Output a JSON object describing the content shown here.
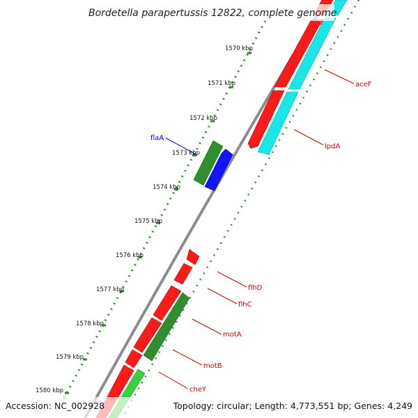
{
  "title": "Bordetella parapertussis 12822, complete genome",
  "footer": {
    "accession": "Accession: NC_002928",
    "summary": "Topology: circular; Length: 4,773,551 bp; Genes: 4,249"
  },
  "colors": {
    "backbone": "#8c8c8c",
    "ticks": "#2e8b2e",
    "red_gene": "#ff1a1a",
    "cyan_gene": "#19e6e6",
    "green_gene": "#2f8f2f",
    "light_green_gene": "#39d139",
    "blue_gene": "#1414ff",
    "red_label": "#cc0000",
    "blue_label": "#0000cc"
  },
  "ticks": [
    "1570 kbp",
    "1571 kbp",
    "1572 kbp",
    "1573 kbp",
    "1574 kbp",
    "1575 kbp",
    "1576 kbp",
    "1577 kbp",
    "1578 kbp",
    "1579 kbp",
    "1580 kbp"
  ],
  "genes": [
    {
      "name": "aceF",
      "color": "red"
    },
    {
      "name": "lpdA",
      "color": "red"
    },
    {
      "name": "flaA",
      "color": "blue"
    },
    {
      "name": "flhD",
      "color": "red"
    },
    {
      "name": "flhC",
      "color": "red"
    },
    {
      "name": "motA",
      "color": "red"
    },
    {
      "name": "motB",
      "color": "red"
    },
    {
      "name": "cheY",
      "color": "red"
    }
  ]
}
